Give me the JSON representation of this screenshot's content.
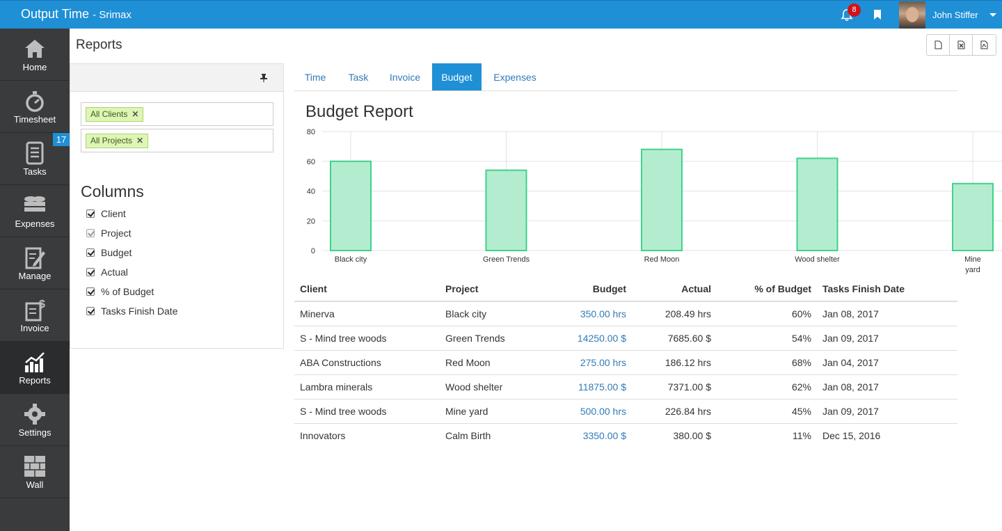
{
  "app": {
    "title": "Output Time",
    "company": "Srimax"
  },
  "header": {
    "notifications_count": "8",
    "user_name": "John Stiffer"
  },
  "sidebar": {
    "items": [
      {
        "label": "Home",
        "icon": "home-icon",
        "badge": ""
      },
      {
        "label": "Timesheet",
        "icon": "stopwatch-icon",
        "badge": ""
      },
      {
        "label": "Tasks",
        "icon": "task-list-icon",
        "badge": "17"
      },
      {
        "label": "Expenses",
        "icon": "coins-icon",
        "badge": ""
      },
      {
        "label": "Manage",
        "icon": "edit-document-icon",
        "badge": ""
      },
      {
        "label": "Invoice",
        "icon": "invoice-dollar-icon",
        "badge": ""
      },
      {
        "label": "Reports",
        "icon": "bar-chart-icon",
        "badge": ""
      },
      {
        "label": "Settings",
        "icon": "gear-icon",
        "badge": ""
      },
      {
        "label": "Wall",
        "icon": "brick-wall-icon",
        "badge": ""
      }
    ],
    "active": "Reports"
  },
  "page": {
    "title": "Reports"
  },
  "export": {
    "buttons": [
      "export-document",
      "export-excel",
      "export-pdf"
    ]
  },
  "filters": {
    "clients_tag": "All Clients",
    "projects_tag": "All Projects"
  },
  "columns": {
    "title": "Columns",
    "items": [
      {
        "label": "Client",
        "checked": true,
        "disabled": false
      },
      {
        "label": "Project",
        "checked": true,
        "disabled": true
      },
      {
        "label": "Budget",
        "checked": true,
        "disabled": false
      },
      {
        "label": "Actual",
        "checked": true,
        "disabled": false
      },
      {
        "label": "% of Budget",
        "checked": true,
        "disabled": false
      },
      {
        "label": "Tasks Finish Date",
        "checked": true,
        "disabled": false
      }
    ]
  },
  "tabs": {
    "items": [
      "Time",
      "Task",
      "Invoice",
      "Budget",
      "Expenses"
    ],
    "active": "Budget"
  },
  "report": {
    "title": "Budget Report"
  },
  "chart_data": {
    "type": "bar",
    "categories": [
      "Black city",
      "Green Trends",
      "Red Moon",
      "Wood shelter",
      "Mine yard"
    ],
    "values": [
      60,
      54,
      68,
      62,
      45
    ],
    "ylim": [
      0,
      80
    ],
    "yticks": [
      0,
      20,
      40,
      60,
      80
    ],
    "grid": true,
    "bar_color": "#b4ecd0",
    "bar_border": "#3ed28b"
  },
  "table": {
    "headers": [
      "Client",
      "Project",
      "Budget",
      "Actual",
      "% of Budget",
      "Tasks Finish Date"
    ],
    "rows": [
      [
        "Minerva",
        "Black city",
        "350.00 hrs",
        "208.49 hrs",
        "60%",
        "Jan 08, 2017"
      ],
      [
        "S - Mind tree woods",
        "Green Trends",
        "14250.00 $",
        "7685.60 $",
        "54%",
        "Jan 09, 2017"
      ],
      [
        "ABA Constructions",
        "Red Moon",
        "275.00 hrs",
        "186.12 hrs",
        "68%",
        "Jan 04, 2017"
      ],
      [
        "Lambra minerals",
        "Wood shelter",
        "11875.00 $",
        "7371.00 $",
        "62%",
        "Jan 08, 2017"
      ],
      [
        "S - Mind tree woods",
        "Mine yard",
        "500.00 hrs",
        "226.84 hrs",
        "45%",
        "Jan 09, 2017"
      ],
      [
        "Innovators",
        "Calm Birth",
        "3350.00 $",
        "380.00 $",
        "11%",
        "Dec 15, 2016"
      ]
    ]
  },
  "colors": {
    "primary": "#1f8fd6",
    "sidebar": "#3a3b3d",
    "link": "#337ab7",
    "badge_red": "#d0121b"
  }
}
